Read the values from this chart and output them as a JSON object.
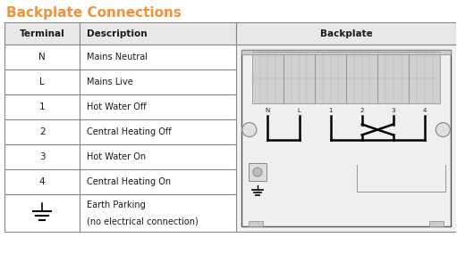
{
  "title": "Backplate Connections",
  "title_color": "#F0923A",
  "title_fontsize": 11,
  "bg_color": "#FFFFFF",
  "header_bg": "#E8E8E8",
  "row_bg": "#FFFFFF",
  "border_color": "#888888",
  "text_color": "#1A1A1A",
  "col1_header": "Terminal",
  "col2_header": "Description",
  "col3_header": "Backplate",
  "rows": [
    {
      "terminal": "N",
      "description": "Mains Neutral"
    },
    {
      "terminal": "L",
      "description": "Mains Live"
    },
    {
      "terminal": "1",
      "description": "Hot Water Off"
    },
    {
      "terminal": "2",
      "description": "Central Heating Off"
    },
    {
      "terminal": "3",
      "description": "Hot Water On"
    },
    {
      "terminal": "4",
      "description": "Central Heating On"
    },
    {
      "terminal": "earth",
      "description": "Earth Parking\n(no electrical connection)"
    }
  ],
  "figw": 5.11,
  "figh": 2.85,
  "dpi": 100
}
